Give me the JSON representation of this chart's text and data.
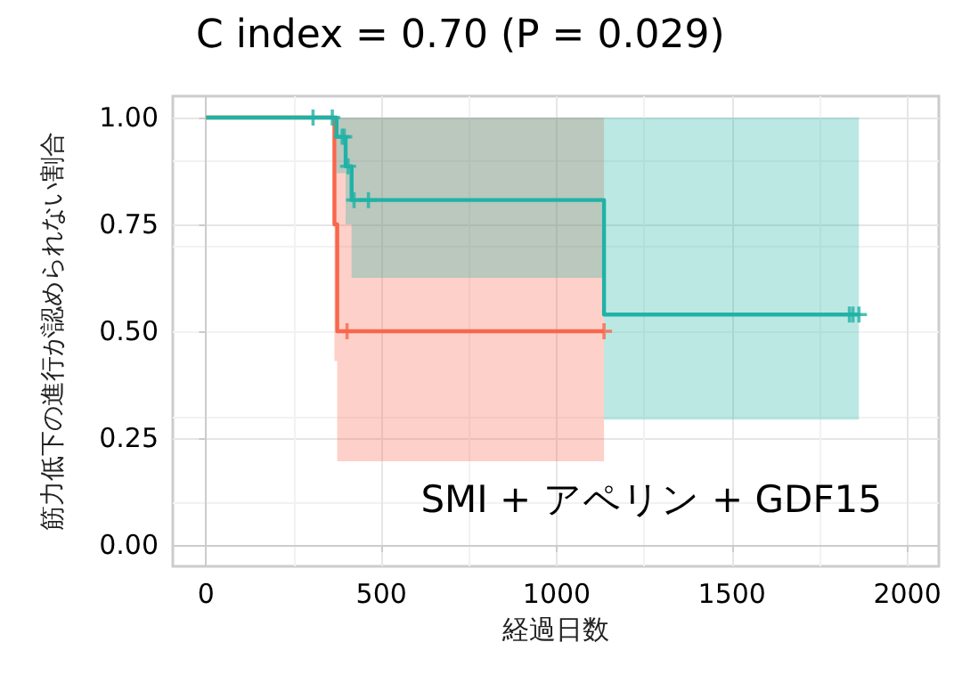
{
  "chart_data": {
    "type": "step",
    "title": "C index = 0.70 (P = 0.029)",
    "xlabel": "経過日数",
    "ylabel": "筋力低下の進行が認められない割合",
    "annotations": [
      "SMI + アペリン + GDF15"
    ],
    "xlim": [
      -95,
      2090
    ],
    "xticks": [
      0,
      500,
      1000,
      1500,
      2000
    ],
    "ylim": [
      -0.05,
      1.05
    ],
    "yticks": [
      {
        "value": 0,
        "label": "0.00"
      },
      {
        "value": 0.25,
        "label": "0.25"
      },
      {
        "value": 0.5,
        "label": "0.50"
      },
      {
        "value": 0.75,
        "label": "0.75"
      },
      {
        "value": 1,
        "label": "1.00"
      }
    ],
    "grid": true,
    "marker": "none",
    "line_style": "solid",
    "series": [
      {
        "color": "#f9664b",
        "x": [
          0,
          366,
          374,
          1135
        ],
        "values": [
          1,
          0.75,
          0.5,
          0.5
        ],
        "lower": [
          null,
          0.43,
          0.196,
          0.196
        ],
        "upper": [
          null,
          1,
          1,
          1
        ]
      },
      {
        "color": "#20b2a6",
        "x": [
          0,
          372,
          398,
          415,
          1135,
          1862
        ],
        "values": [
          1,
          0.955,
          0.886,
          0.807,
          0.539,
          0.539
        ],
        "lower": [
          null,
          0.87,
          0.75,
          0.625,
          0.293,
          0.293
        ],
        "upper": [
          null,
          1,
          1,
          1,
          1,
          1
        ]
      },
      {
        "type": "scatter",
        "marker": "cross",
        "color": "#f9664b",
        "x": [
          402,
          1135
        ],
        "values": [
          0.5,
          0.5
        ]
      },
      {
        "type": "scatter",
        "marker": "cross",
        "color": "#20b2a6",
        "x": [
          305,
          360,
          388,
          394,
          405,
          422,
          463,
          1835,
          1845,
          1862
        ],
        "values": [
          1,
          1,
          0.955,
          0.955,
          0.886,
          0.807,
          0.807,
          0.539,
          0.539,
          0.539
        ]
      }
    ]
  }
}
